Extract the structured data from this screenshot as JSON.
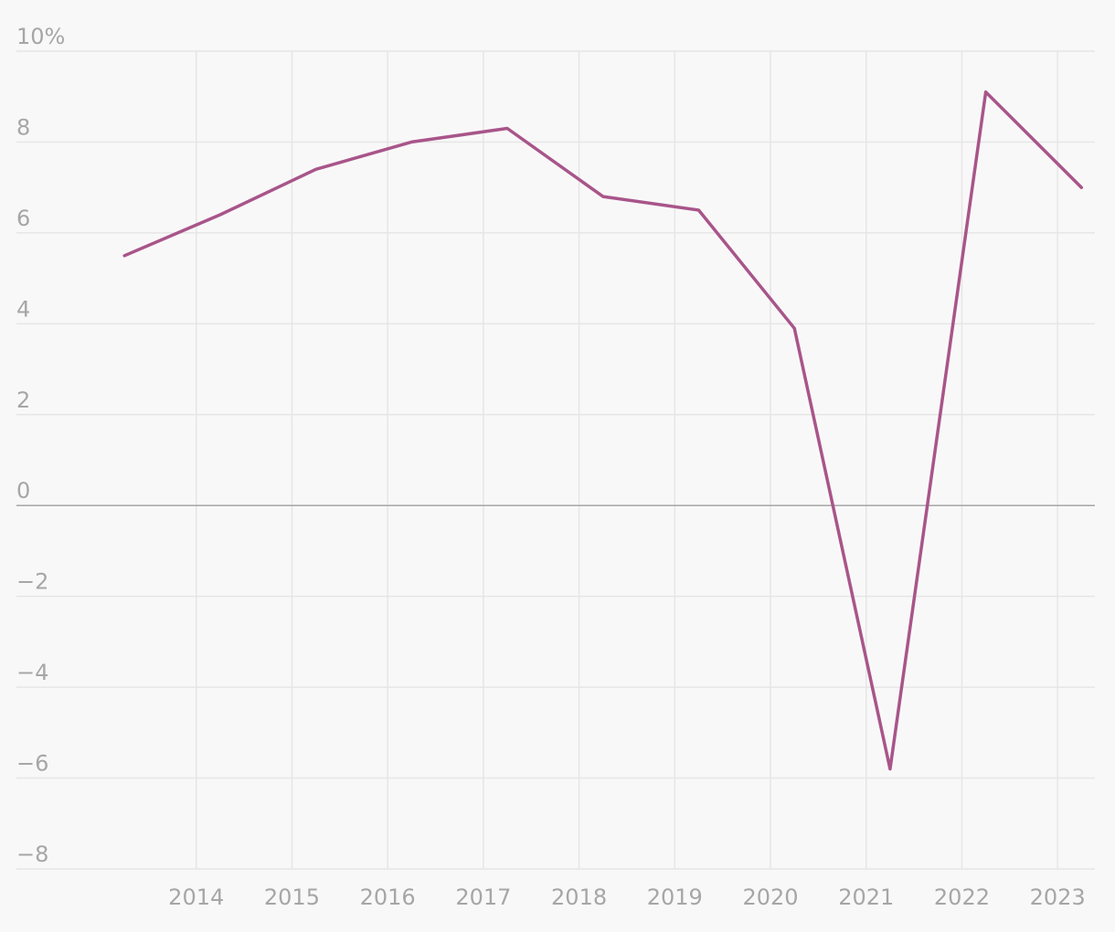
{
  "chart_data": {
    "type": "line",
    "title": "",
    "xlabel": "",
    "ylabel": "",
    "y_unit_suffix": "%",
    "ylim": [
      -8,
      10
    ],
    "yticks": [
      -8,
      -6,
      -4,
      -2,
      0,
      2,
      4,
      6,
      8,
      10
    ],
    "ytick_labels": [
      "−8",
      "−6",
      "−4",
      "−2",
      "0",
      "2",
      "4",
      "6",
      "8",
      "10%"
    ],
    "xlim": [
      2013.0,
      2023.6
    ],
    "xticks": [
      2014,
      2015,
      2016,
      2017,
      2018,
      2019,
      2020,
      2021,
      2022,
      2023
    ],
    "xtick_labels": [
      "2014",
      "2015",
      "2016",
      "2017",
      "2018",
      "2019",
      "2020",
      "2021",
      "2022",
      "2023"
    ],
    "grid": true,
    "legend": "none",
    "series": [
      {
        "color": "#a8558a",
        "x": [
          2013.25,
          2014.25,
          2015.25,
          2016.25,
          2017.25,
          2018.25,
          2019.25,
          2020.25,
          2021.25,
          2022.25,
          2023.25
        ],
        "values": [
          5.5,
          6.4,
          7.4,
          8.0,
          8.3,
          6.8,
          6.5,
          3.9,
          -5.8,
          9.1,
          7.0
        ]
      }
    ]
  }
}
